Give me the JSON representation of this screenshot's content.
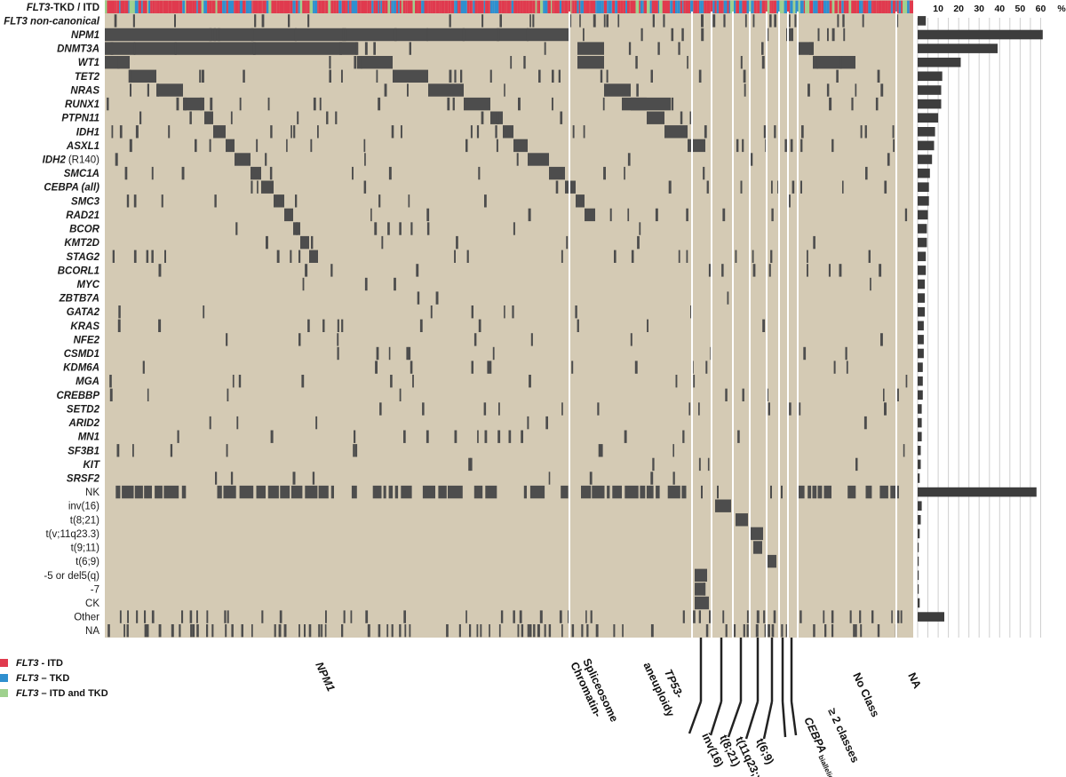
{
  "chart_data": {
    "type": "heatmap",
    "description_note": "",
    "colors": {
      "background": "#d4cab4",
      "mutated": "#4d4d4d",
      "itd": "#e03a4e",
      "tkd": "#2f8fcf",
      "itd_tkd": "#9fd18e",
      "bar": "#3d3d3d",
      "grid": "#cfcfcf"
    },
    "rows": [
      {
        "label": "TKD / ITD",
        "prefix": "FLT3",
        "italic": true,
        "pct": null
      },
      {
        "label": "FLT3 non-canonical",
        "italic": true,
        "pct": 4
      },
      {
        "label": "NPM1",
        "italic": true,
        "pct": 61
      },
      {
        "label": "DNMT3A",
        "italic": true,
        "pct": 39
      },
      {
        "label": "WT1",
        "italic": true,
        "pct": 21
      },
      {
        "label": "TET2",
        "italic": true,
        "pct": 12
      },
      {
        "label": "NRAS",
        "italic": true,
        "pct": 11.5
      },
      {
        "label": "RUNX1",
        "italic": true,
        "pct": 11.5
      },
      {
        "label": "PTPN11",
        "italic": true,
        "pct": 10
      },
      {
        "label": "IDH1",
        "italic": true,
        "pct": 8.5
      },
      {
        "label": "ASXL1",
        "italic": true,
        "pct": 8
      },
      {
        "label": "(R140)",
        "prefix": "IDH2",
        "italic": true,
        "pct": 7
      },
      {
        "label": "SMC1A",
        "italic": true,
        "pct": 6
      },
      {
        "label": "CEBPA (all)",
        "italic": true,
        "pct": 5.5
      },
      {
        "label": "SMC3",
        "italic": true,
        "pct": 5.5
      },
      {
        "label": "RAD21",
        "italic": true,
        "pct": 5
      },
      {
        "label": "BCOR",
        "italic": true,
        "pct": 4.5
      },
      {
        "label": "KMT2D",
        "italic": true,
        "pct": 4.5
      },
      {
        "label": "STAG2",
        "italic": true,
        "pct": 4
      },
      {
        "label": "BCORL1",
        "italic": true,
        "pct": 4
      },
      {
        "label": "MYC",
        "italic": true,
        "pct": 3.5
      },
      {
        "label": "ZBTB7A",
        "italic": true,
        "pct": 3.5
      },
      {
        "label": "GATA2",
        "italic": true,
        "pct": 3.5
      },
      {
        "label": "KRAS",
        "italic": true,
        "pct": 3
      },
      {
        "label": "NFE2",
        "italic": true,
        "pct": 3
      },
      {
        "label": "CSMD1",
        "italic": true,
        "pct": 3
      },
      {
        "label": "KDM6A",
        "italic": true,
        "pct": 2.5
      },
      {
        "label": "MGA",
        "italic": true,
        "pct": 2.5
      },
      {
        "label": "CREBBP",
        "italic": true,
        "pct": 2.5
      },
      {
        "label": "SETD2",
        "italic": true,
        "pct": 2
      },
      {
        "label": "ARID2",
        "italic": true,
        "pct": 2
      },
      {
        "label": "MN1",
        "italic": true,
        "pct": 2
      },
      {
        "label": "SF3B1",
        "italic": true,
        "pct": 1.5
      },
      {
        "label": "KIT",
        "italic": true,
        "pct": 1.5
      },
      {
        "label": "SRSF2",
        "italic": true,
        "pct": 1
      },
      {
        "label": "NK",
        "italic": false,
        "pct": 58
      },
      {
        "label": "inv(16)",
        "italic": false,
        "pct": 2
      },
      {
        "label": "t(8;21)",
        "italic": false,
        "pct": 1.5
      },
      {
        "label": "t(v;11q23.3)",
        "italic": false,
        "pct": 1
      },
      {
        "label": "t(9;11)",
        "italic": false,
        "pct": 0.5
      },
      {
        "label": "t(6;9)",
        "italic": false,
        "pct": 0.5
      },
      {
        "label": "-5 or del5(q)",
        "italic": false,
        "pct": 0.5
      },
      {
        "label": "-7",
        "italic": false,
        "pct": 0.5
      },
      {
        "label": "CK",
        "italic": false,
        "pct": 1
      },
      {
        "label": "Other",
        "italic": false,
        "pct": 13
      },
      {
        "label": "NA",
        "italic": false,
        "pct": null
      }
    ],
    "groups": [
      {
        "label": "NPM1",
        "italic": true
      },
      {
        "label": "Chromatin-Spliceosome",
        "line1": "Chromatin-",
        "line2": "Spliceosome"
      },
      {
        "label": "TP53-aneuploidy",
        "line1": "TP53-",
        "line2": "aneuploidy",
        "italic_part": "TP53"
      },
      {
        "label": "inv(16)"
      },
      {
        "label": "t(8;21)"
      },
      {
        "label": "t(11q23;x)"
      },
      {
        "label": "t(6;9)"
      },
      {
        "label": "CEBPA biallelic",
        "main": "CEBPA",
        "sub": "biallelic"
      },
      {
        "label": "≥ 2 classes"
      },
      {
        "label": "No Class"
      },
      {
        "label": "NA"
      }
    ],
    "xaxis": {
      "ticks": [
        10,
        20,
        30,
        40,
        50,
        60
      ],
      "unit": "%",
      "range": [
        0,
        65
      ]
    },
    "legend": [
      {
        "italic": "FLT3",
        "rest": " - ITD",
        "color": "#e03a4e"
      },
      {
        "italic": "FLT3",
        "rest": " – TKD",
        "color": "#2f8fcf"
      },
      {
        "italic": "FLT3",
        "rest": " – ITD and TKD",
        "color": "#9fd18e"
      }
    ]
  }
}
